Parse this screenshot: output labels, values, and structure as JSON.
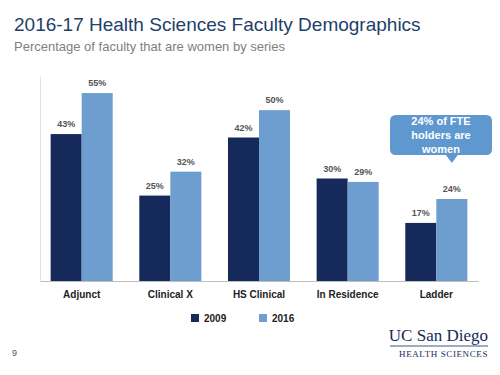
{
  "chart_data": {
    "type": "bar",
    "title": "2016-17 Health Sciences Faculty Demographics",
    "subtitle": "Percentage of faculty that are women by series",
    "categories": [
      "Adjunct",
      "Clinical X",
      "HS Clinical",
      "In Residence",
      "Ladder"
    ],
    "series": [
      {
        "name": "2009",
        "color": "#15295b",
        "values": [
          43,
          25,
          42,
          30,
          17
        ],
        "value_labels": [
          "43%",
          "25%",
          "42%",
          "30%",
          "17%"
        ]
      },
      {
        "name": "2016",
        "color": "#6d9ecf",
        "values": [
          55,
          32,
          50,
          29,
          24
        ],
        "value_labels": [
          "55%",
          "32%",
          "50%",
          "29%",
          "24%"
        ]
      }
    ],
    "ylim": [
      0,
      60
    ],
    "data_labels": true,
    "tick_labels": "x",
    "grid": false,
    "legend": "bottom",
    "annotations": [
      {
        "text": "24% of FTE holders are women",
        "category": "Ladder",
        "series": "2016"
      }
    ],
    "footer": {
      "page": "9",
      "logo": "UC San Diego",
      "logo_sub": "HEALTH SCIENCES"
    }
  }
}
